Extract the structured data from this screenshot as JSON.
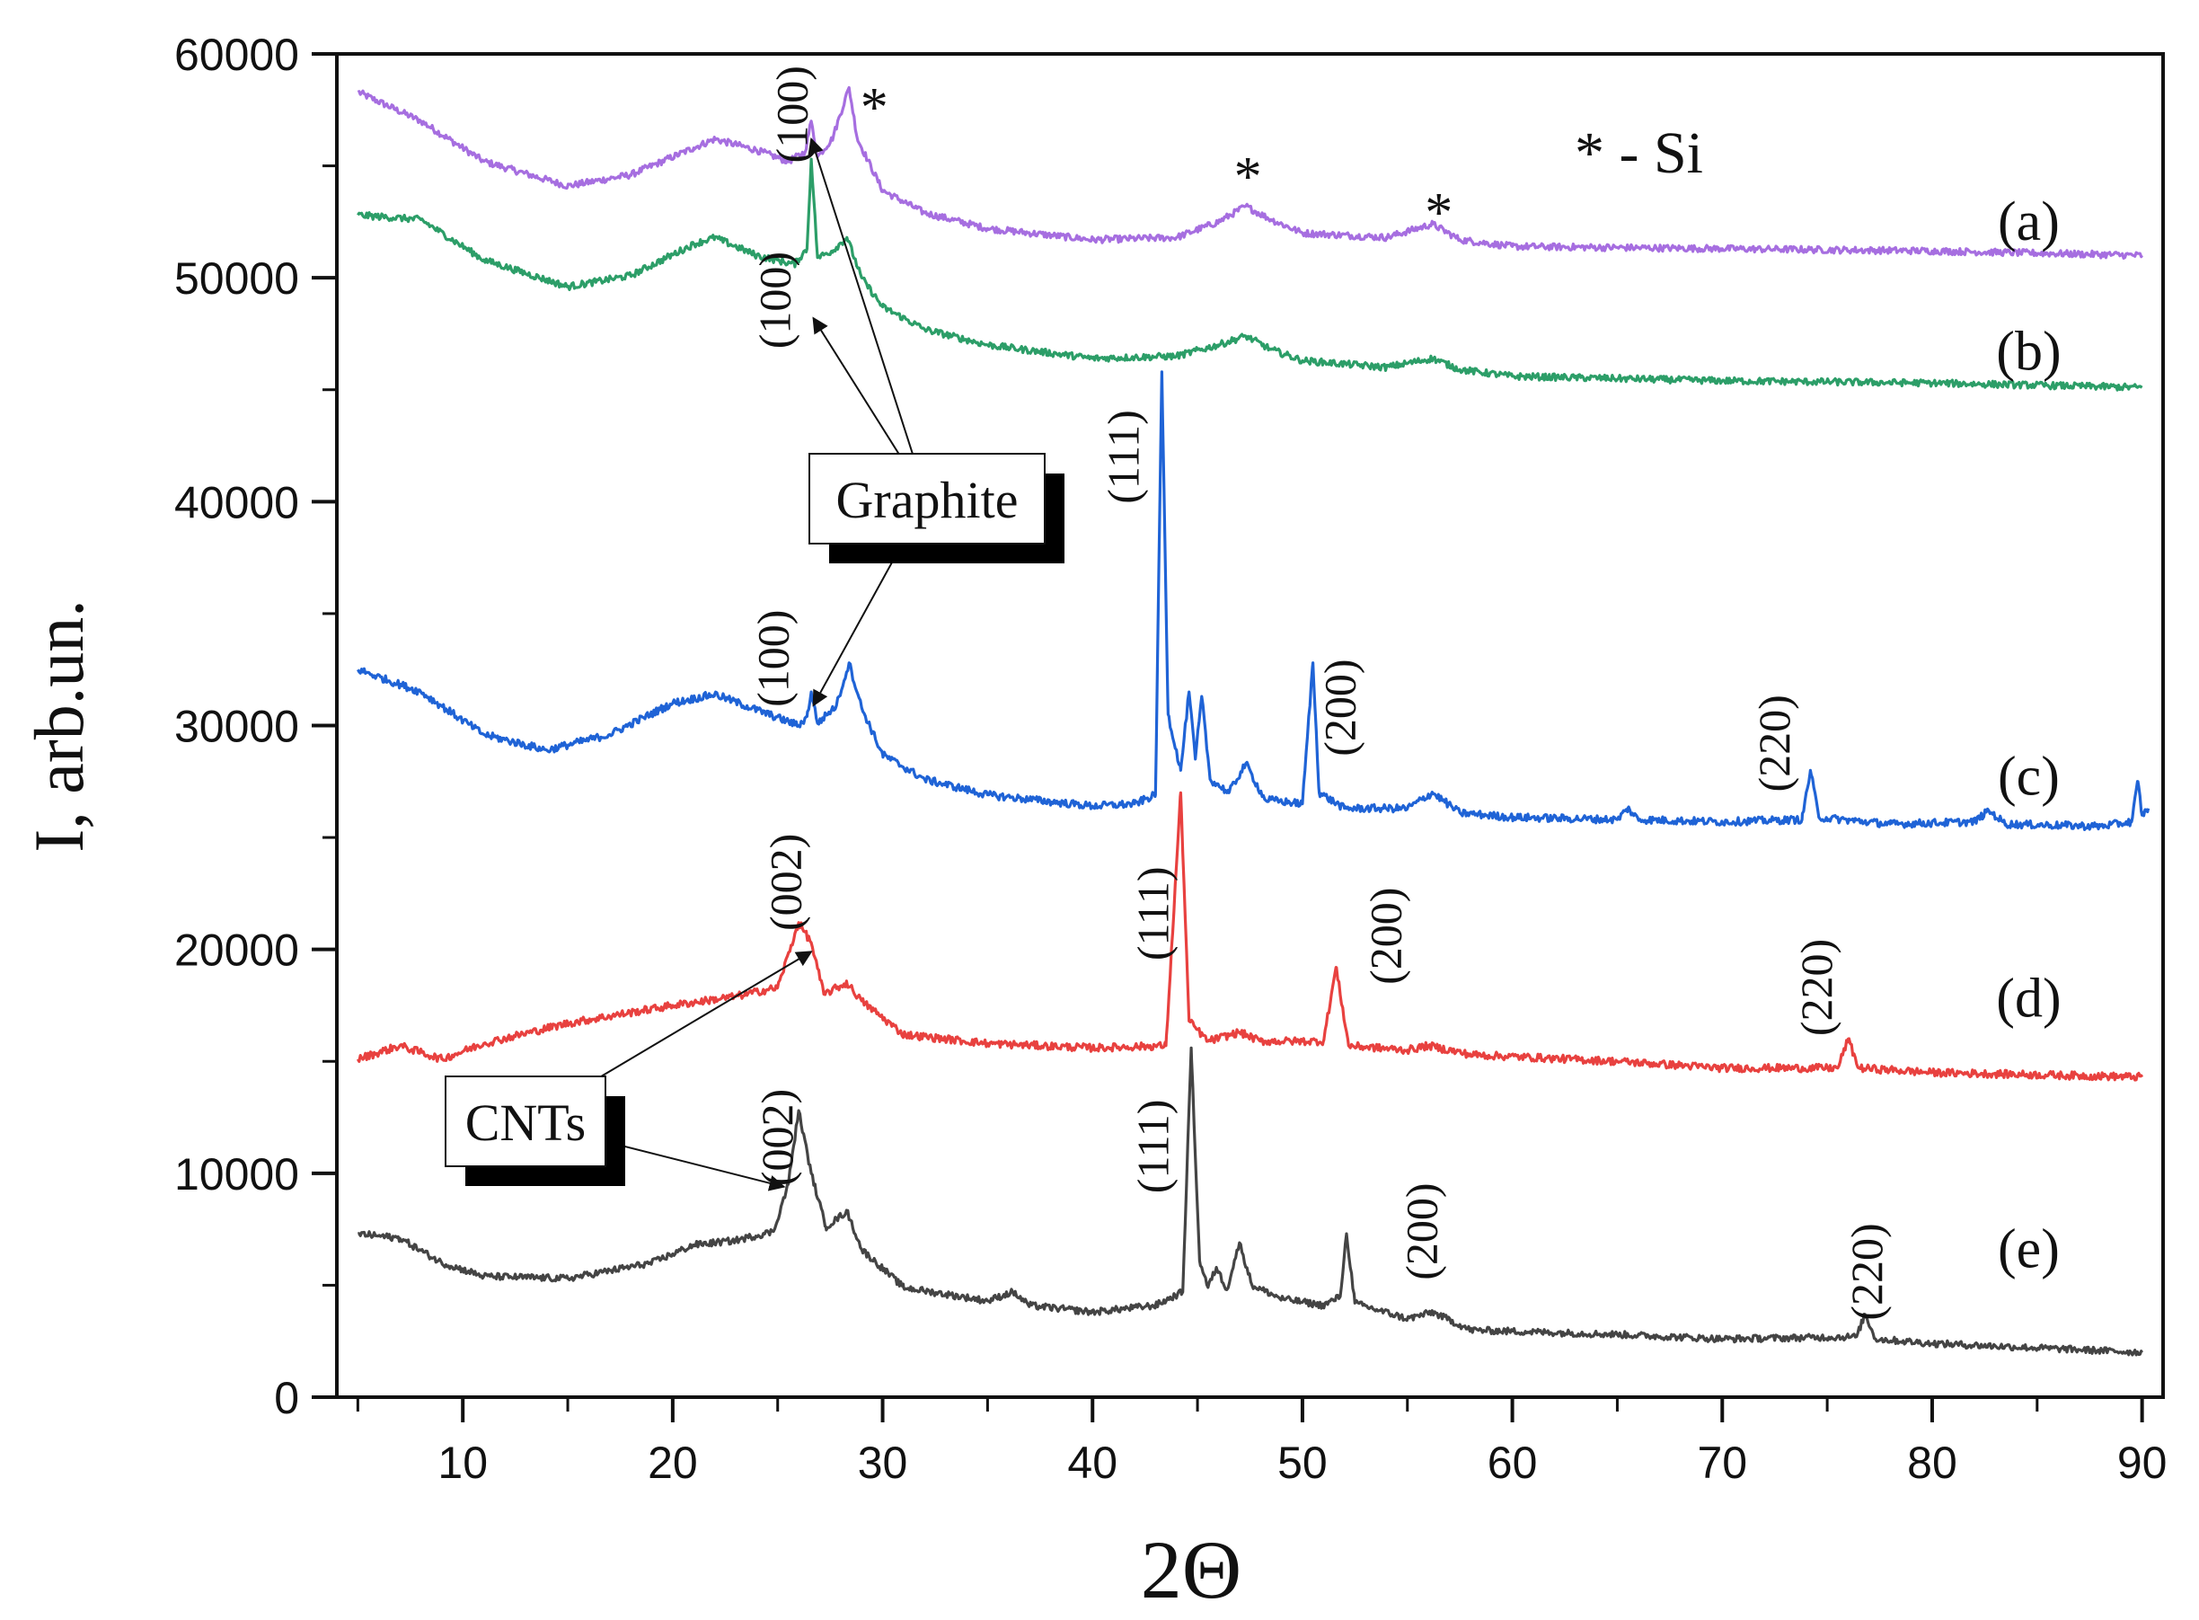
{
  "chart_data": {
    "type": "line",
    "xlabel": "2Θ",
    "ylabel": "I, arb.un.",
    "xlim": [
      4,
      91
    ],
    "ylim": [
      0,
      60000
    ],
    "x_ticks": [
      10,
      20,
      30,
      40,
      50,
      60,
      70,
      80,
      90
    ],
    "y_ticks": [
      0,
      10000,
      20000,
      30000,
      40000,
      50000,
      60000
    ],
    "x_tick_labels": [
      "10",
      "20",
      "30",
      "40",
      "50",
      "60",
      "70",
      "80",
      "90"
    ],
    "y_tick_labels": [
      "0",
      "10000",
      "20000",
      "30000",
      "40000",
      "50000",
      "60000"
    ],
    "legend_note": "* - Si",
    "callouts": [
      "Graphite",
      "CNTs"
    ],
    "series": [
      {
        "name": "(a)",
        "color": "#a66ee0",
        "points": [
          [
            5,
            58300
          ],
          [
            8,
            57000
          ],
          [
            11,
            55200
          ],
          [
            15,
            54100
          ],
          [
            18,
            54600
          ],
          [
            21,
            55800
          ],
          [
            22,
            56200
          ],
          [
            24,
            55700
          ],
          [
            25.5,
            55200
          ],
          [
            26.3,
            55600
          ],
          [
            26.6,
            57000
          ],
          [
            26.9,
            55400
          ],
          [
            27.6,
            56200
          ],
          [
            28.4,
            58500
          ],
          [
            28.8,
            56200
          ],
          [
            30,
            53900
          ],
          [
            32,
            52900
          ],
          [
            35,
            52200
          ],
          [
            40,
            51700
          ],
          [
            44,
            51800
          ],
          [
            46,
            52500
          ],
          [
            47.3,
            53200
          ],
          [
            48.5,
            52600
          ],
          [
            50,
            52000
          ],
          [
            54,
            51800
          ],
          [
            56.2,
            52400
          ],
          [
            57.5,
            51700
          ],
          [
            60,
            51400
          ],
          [
            70,
            51300
          ],
          [
            80,
            51200
          ],
          [
            90,
            51000
          ]
        ],
        "noise": 150
      },
      {
        "name": "(b)",
        "color": "#2c9e68",
        "points": [
          [
            5,
            52800
          ],
          [
            8,
            52600
          ],
          [
            11,
            50800
          ],
          [
            15,
            49600
          ],
          [
            18,
            50100
          ],
          [
            21,
            51500
          ],
          [
            22,
            51800
          ],
          [
            24,
            51000
          ],
          [
            25.8,
            50600
          ],
          [
            26.4,
            51300
          ],
          [
            26.6,
            55300
          ],
          [
            26.9,
            50900
          ],
          [
            27.6,
            51200
          ],
          [
            28.3,
            51800
          ],
          [
            29,
            50000
          ],
          [
            30,
            48700
          ],
          [
            32,
            47700
          ],
          [
            35,
            47000
          ],
          [
            40,
            46400
          ],
          [
            44,
            46500
          ],
          [
            46,
            47000
          ],
          [
            47.3,
            47400
          ],
          [
            48.5,
            46800
          ],
          [
            50,
            46300
          ],
          [
            54,
            46000
          ],
          [
            56.2,
            46400
          ],
          [
            57.5,
            45900
          ],
          [
            60,
            45600
          ],
          [
            70,
            45400
          ],
          [
            80,
            45300
          ],
          [
            90,
            45100
          ]
        ],
        "noise": 150
      },
      {
        "name": "(c)",
        "color": "#1f63d6",
        "points": [
          [
            5,
            32500
          ],
          [
            8,
            31500
          ],
          [
            11,
            29600
          ],
          [
            14,
            28900
          ],
          [
            17,
            29600
          ],
          [
            20,
            31000
          ],
          [
            22,
            31400
          ],
          [
            24,
            30700
          ],
          [
            26,
            30000
          ],
          [
            26.4,
            30400
          ],
          [
            26.6,
            31500
          ],
          [
            26.9,
            30100
          ],
          [
            27.8,
            30900
          ],
          [
            28.4,
            32800
          ],
          [
            29,
            30800
          ],
          [
            30,
            28700
          ],
          [
            32,
            27600
          ],
          [
            35,
            26900
          ],
          [
            40,
            26400
          ],
          [
            42,
            26500
          ],
          [
            43,
            26900
          ],
          [
            43.3,
            45800
          ],
          [
            43.6,
            30500
          ],
          [
            44.2,
            28000
          ],
          [
            44.6,
            31500
          ],
          [
            44.9,
            28500
          ],
          [
            45.2,
            31300
          ],
          [
            45.6,
            27600
          ],
          [
            46.5,
            27000
          ],
          [
            47.3,
            28300
          ],
          [
            48.2,
            26700
          ],
          [
            50,
            26500
          ],
          [
            50.5,
            32800
          ],
          [
            50.8,
            27000
          ],
          [
            52,
            26300
          ],
          [
            55,
            26300
          ],
          [
            56.2,
            27000
          ],
          [
            57.5,
            26100
          ],
          [
            60,
            25900
          ],
          [
            65,
            25800
          ],
          [
            65.5,
            26300
          ],
          [
            66,
            25800
          ],
          [
            70,
            25700
          ],
          [
            73.8,
            25800
          ],
          [
            74.2,
            28000
          ],
          [
            74.6,
            25900
          ],
          [
            78,
            25600
          ],
          [
            82,
            25700
          ],
          [
            82.7,
            26200
          ],
          [
            83.5,
            25600
          ],
          [
            88,
            25500
          ],
          [
            89.5,
            25700
          ],
          [
            89.8,
            27500
          ],
          [
            90,
            26000
          ],
          [
            90.3,
            26300
          ]
        ],
        "noise": 170
      },
      {
        "name": "(d)",
        "color": "#e8413f",
        "points": [
          [
            5,
            15100
          ],
          [
            7,
            15700
          ],
          [
            9,
            15100
          ],
          [
            11,
            15800
          ],
          [
            15,
            16700
          ],
          [
            20,
            17500
          ],
          [
            23,
            17900
          ],
          [
            25,
            18300
          ],
          [
            26,
            21200
          ],
          [
            26.6,
            20300
          ],
          [
            27.2,
            18000
          ],
          [
            28.3,
            18500
          ],
          [
            29,
            17700
          ],
          [
            31,
            16200
          ],
          [
            35,
            15800
          ],
          [
            40,
            15600
          ],
          [
            43.5,
            15700
          ],
          [
            44.2,
            27000
          ],
          [
            44.6,
            16800
          ],
          [
            45.5,
            15900
          ],
          [
            47,
            16300
          ],
          [
            48,
            15900
          ],
          [
            51,
            15900
          ],
          [
            51.6,
            19200
          ],
          [
            52.2,
            15700
          ],
          [
            55,
            15500
          ],
          [
            56,
            15700
          ],
          [
            58,
            15300
          ],
          [
            65,
            15000
          ],
          [
            70,
            14700
          ],
          [
            75.5,
            14700
          ],
          [
            76,
            16000
          ],
          [
            76.5,
            14700
          ],
          [
            80,
            14500
          ],
          [
            90,
            14300
          ]
        ],
        "noise": 170
      },
      {
        "name": "(e)",
        "color": "#444444",
        "points": [
          [
            5,
            7300
          ],
          [
            7,
            7100
          ],
          [
            9,
            6000
          ],
          [
            11,
            5400
          ],
          [
            15,
            5300
          ],
          [
            19,
            6000
          ],
          [
            21,
            6800
          ],
          [
            23,
            7000
          ],
          [
            24.8,
            7400
          ],
          [
            25.5,
            9500
          ],
          [
            26,
            12800
          ],
          [
            26.6,
            10000
          ],
          [
            27.3,
            7600
          ],
          [
            28.3,
            8300
          ],
          [
            29,
            6600
          ],
          [
            31,
            4900
          ],
          [
            35,
            4300
          ],
          [
            36.2,
            4700
          ],
          [
            37,
            4100
          ],
          [
            40,
            3800
          ],
          [
            43,
            4100
          ],
          [
            44.3,
            4700
          ],
          [
            44.7,
            15600
          ],
          [
            45.1,
            6100
          ],
          [
            45.5,
            4900
          ],
          [
            45.9,
            5800
          ],
          [
            46.4,
            4800
          ],
          [
            47,
            6900
          ],
          [
            47.6,
            5000
          ],
          [
            49,
            4400
          ],
          [
            51,
            4100
          ],
          [
            51.8,
            4500
          ],
          [
            52.1,
            7300
          ],
          [
            52.5,
            4200
          ],
          [
            55,
            3500
          ],
          [
            56.2,
            3800
          ],
          [
            58,
            3000
          ],
          [
            65,
            2800
          ],
          [
            70,
            2600
          ],
          [
            76.4,
            2700
          ],
          [
            76.8,
            3700
          ],
          [
            77.3,
            2600
          ],
          [
            80,
            2400
          ],
          [
            90,
            2000
          ]
        ],
        "noise": 150
      }
    ],
    "annotations": [
      {
        "text": "(100)",
        "x": 26.4,
        "y": 57300,
        "color": "#111111"
      },
      {
        "text": "*",
        "x": 29.6,
        "y": 57600,
        "color": "#111111"
      },
      {
        "text": "*",
        "x": 47.4,
        "y": 54500,
        "color": "#111111"
      },
      {
        "text": "*",
        "x": 56.5,
        "y": 52900,
        "color": "#111111"
      },
      {
        "text": "(100)",
        "x": 25.6,
        "y": 49000,
        "color": "#111111"
      },
      {
        "text": "(111)",
        "x": 42.2,
        "y": 42000,
        "color": "#111111"
      },
      {
        "text": "(100)",
        "x": 25.5,
        "y": 33000,
        "color": "#111111"
      },
      {
        "text": "(200)",
        "x": 52.5,
        "y": 30800,
        "color": "#111111"
      },
      {
        "text": "(220)",
        "x": 73.2,
        "y": 29200,
        "color": "#111111"
      },
      {
        "text": "(002)",
        "x": 26.1,
        "y": 23000,
        "color": "#111111"
      },
      {
        "text": "(111)",
        "x": 43.6,
        "y": 21600,
        "color": "#111111"
      },
      {
        "text": "(200)",
        "x": 54.7,
        "y": 20600,
        "color": "#111111"
      },
      {
        "text": "(220)",
        "x": 75.2,
        "y": 18300,
        "color": "#111111"
      },
      {
        "text": "(002)",
        "x": 25.7,
        "y": 11600,
        "color": "#111111"
      },
      {
        "text": "(111)",
        "x": 43.6,
        "y": 11200,
        "color": "#111111"
      },
      {
        "text": "(200)",
        "x": 56.4,
        "y": 7400,
        "color": "#111111"
      },
      {
        "text": "(220)",
        "x": 77.6,
        "y": 5600,
        "color": "#111111"
      }
    ]
  }
}
